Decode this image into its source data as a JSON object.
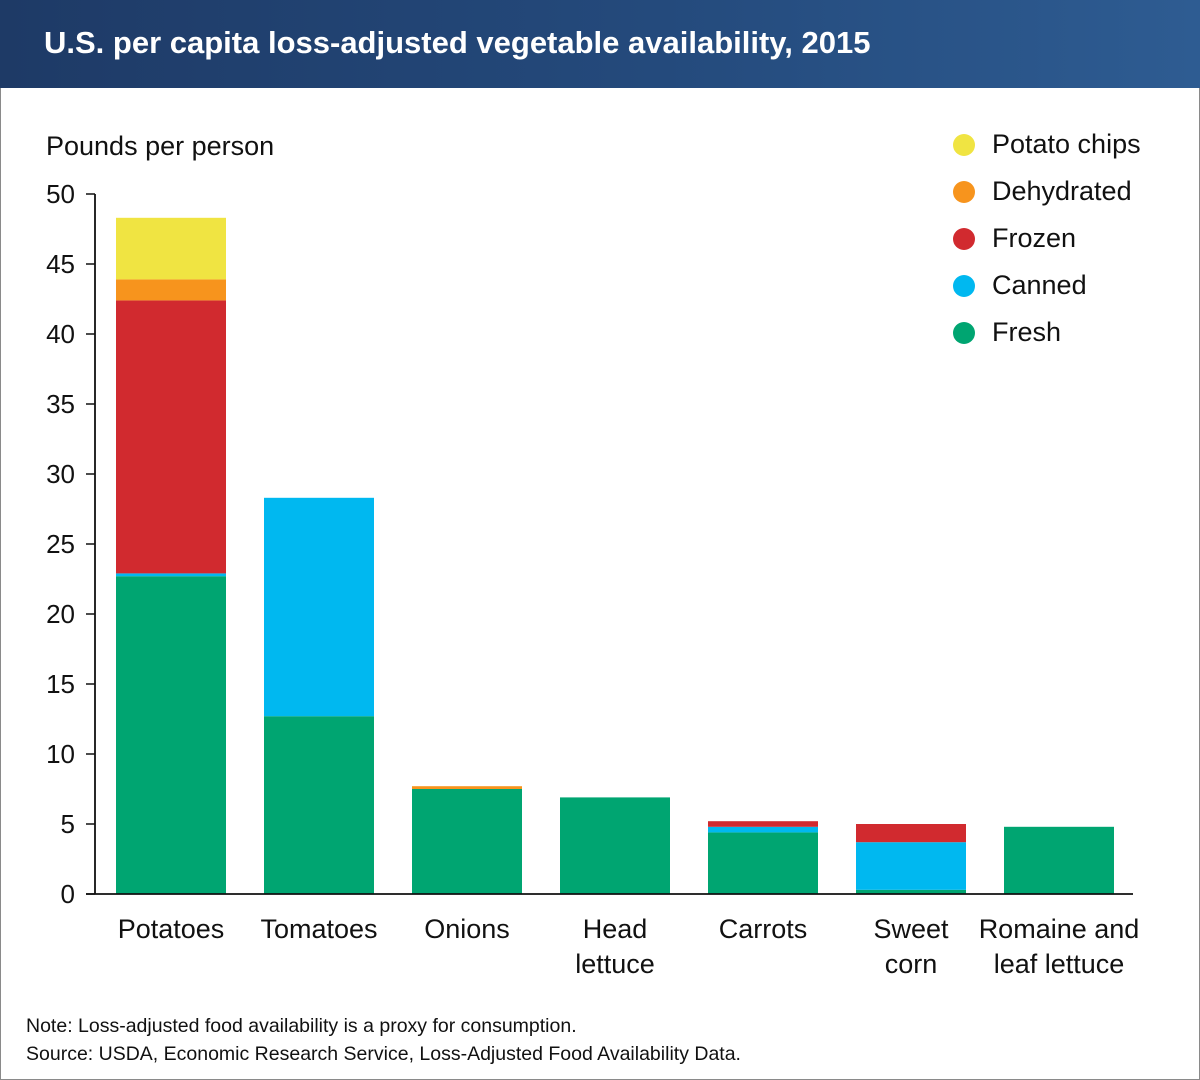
{
  "header": {
    "title": "U.S. per capita loss-adjusted vegetable availability, 2015"
  },
  "colors": {
    "header_background": "#244a7c",
    "fresh": "#00a571",
    "canned": "#00b8f0",
    "frozen": "#d12a2f",
    "dehydrated": "#f7941d",
    "potato_chips": "#f0e442"
  },
  "legend": [
    {
      "label": "Potato chips",
      "color": "#f0e442"
    },
    {
      "label": "Dehydrated",
      "color": "#f7941d"
    },
    {
      "label": "Frozen",
      "color": "#d12a2f"
    },
    {
      "label": "Canned",
      "color": "#00b8f0"
    },
    {
      "label": "Fresh",
      "color": "#00a571"
    }
  ],
  "chart_data": {
    "type": "bar",
    "stacked": true,
    "title": "U.S. per capita loss-adjusted vegetable availability, 2015",
    "xlabel": "",
    "ylabel": "Pounds per person",
    "ylim": [
      0,
      50
    ],
    "yticks": [
      "0",
      "5",
      "10",
      "15",
      "20",
      "25",
      "30",
      "35",
      "40",
      "45",
      "50"
    ],
    "grid": false,
    "legend_position": "top-right",
    "categories": [
      [
        "Potatoes"
      ],
      [
        "Tomatoes"
      ],
      [
        "Onions"
      ],
      [
        "Head",
        "lettuce"
      ],
      [
        "Carrots"
      ],
      [
        "Sweet",
        "corn"
      ],
      [
        "Romaine and",
        "leaf lettuce"
      ]
    ],
    "series": [
      {
        "name": "Fresh",
        "color": "#00a571",
        "values": [
          22.7,
          12.7,
          7.5,
          6.9,
          4.4,
          0.3,
          4.8
        ]
      },
      {
        "name": "Canned",
        "color": "#00b8f0",
        "values": [
          0.2,
          15.6,
          0.0,
          0.0,
          0.4,
          3.4,
          0.0
        ]
      },
      {
        "name": "Frozen",
        "color": "#d12a2f",
        "values": [
          19.5,
          0.0,
          0.0,
          0.0,
          0.4,
          1.3,
          0.0
        ]
      },
      {
        "name": "Dehydrated",
        "color": "#f7941d",
        "values": [
          1.5,
          0.0,
          0.2,
          0.0,
          0.0,
          0.0,
          0.0
        ]
      },
      {
        "name": "Potato chips",
        "color": "#f0e442",
        "values": [
          4.4,
          0.0,
          0.0,
          0.0,
          0.0,
          0.0,
          0.0
        ]
      }
    ]
  },
  "notes": {
    "note": "Note: Loss-adjusted food availability is a proxy for consumption.",
    "source": "Source: USDA, Economic Research Service, Loss-Adjusted Food Availability Data."
  }
}
